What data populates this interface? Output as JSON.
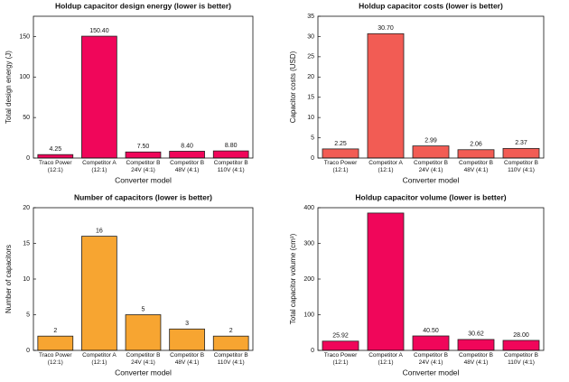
{
  "chart_data": [
    {
      "type": "bar",
      "title": "Holdup capacitor design energy (lower is better)",
      "ylabel": "Total design energy (J)",
      "xlabel": "Converter model",
      "categories": [
        "Traco Power\n(12:1)",
        "Competitor A\n(12:1)",
        "Competitor B\n24V (4:1)",
        "Competitor B\n48V (4:1)",
        "Competitor B\n110V (4:1)"
      ],
      "values": [
        4.25,
        150.4,
        7.5,
        8.4,
        8.8
      ],
      "value_labels": [
        "4.25",
        "150.40",
        "7.50",
        "8.40",
        "8.80"
      ],
      "color": "#f0065a",
      "ylim": [
        0,
        175
      ],
      "yticks": [
        0,
        50,
        100,
        150
      ]
    },
    {
      "type": "bar",
      "title": "Holdup capacitor costs (lower is better)",
      "ylabel": "Capacitor costs (USD)",
      "xlabel": "Converter model",
      "categories": [
        "Traco Power\n(12:1)",
        "Competitor A\n(12:1)",
        "Competitor B\n24V (4:1)",
        "Competitor B\n48V (4:1)",
        "Competitor B\n110V (4:1)"
      ],
      "values": [
        2.25,
        30.7,
        2.99,
        2.06,
        2.37
      ],
      "value_labels": [
        "2.25",
        "30.70",
        "2.99",
        "2.06",
        "2.37"
      ],
      "color": "#f25c54",
      "ylim": [
        0,
        35
      ],
      "yticks": [
        0,
        5,
        10,
        15,
        20,
        25,
        30,
        35
      ]
    },
    {
      "type": "bar",
      "title": "Number of capacitors (lower is better)",
      "ylabel": "Number of capacitors",
      "xlabel": "Converter model",
      "categories": [
        "Traco Power\n(12:1)",
        "Competitor A\n(12:1)",
        "Competitor B\n24V (4:1)",
        "Competitor B\n48V (4:1)",
        "Competitor B\n110V (4:1)"
      ],
      "values": [
        2,
        16,
        5,
        3,
        2
      ],
      "color": "#f7a531",
      "ylim": [
        0,
        20
      ],
      "yticks": [
        0,
        5,
        10,
        15,
        20
      ]
    },
    {
      "type": "bar",
      "title": "Holdup capacitor volume (lower is better)",
      "ylabel": "Total capacitor volume (cm³)",
      "xlabel": "Converter model",
      "categories": [
        "Traco Power\n(12:1)",
        "Competitor A\n(12:1)",
        "Competitor B\n24V (4:1)",
        "Competitor B\n48V (4:1)",
        "Competitor B\n110V (4:1)"
      ],
      "values": [
        25.92,
        385,
        40.5,
        30.62,
        28
      ],
      "value_labels": [
        "25.92",
        null,
        "40.50",
        "30.62",
        "28.00"
      ],
      "color": "#f0065a",
      "ylim": [
        0,
        400
      ],
      "yticks": [
        0,
        100,
        200,
        300,
        400
      ]
    }
  ]
}
